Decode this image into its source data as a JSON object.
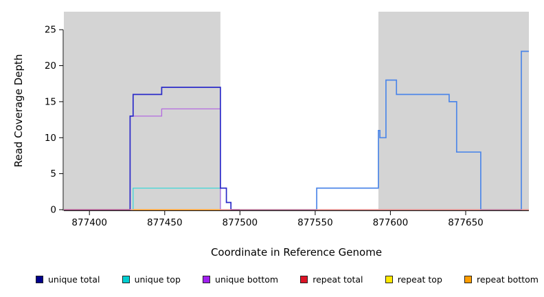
{
  "chart_data": {
    "type": "line",
    "subtype": "step",
    "title": "",
    "xlabel": "Coordinate in Reference Genome",
    "ylabel": "Read Coverage Depth",
    "x_range": [
      877383,
      877692
    ],
    "y_range": [
      0,
      27.5
    ],
    "x_ticks": [
      877400,
      877450,
      877500,
      877550,
      877600,
      877650
    ],
    "y_ticks": [
      0,
      5,
      10,
      15,
      20,
      25
    ],
    "grid": false,
    "legend_position": "bottom",
    "shaded_regions": [
      {
        "name": "repeat-region-left",
        "x0": 877383,
        "x1": 877487,
        "color": "#d4d4d4"
      },
      {
        "name": "repeat-region-right",
        "x0": 877592,
        "x1": 877692,
        "color": "#d4d4d4"
      }
    ],
    "series": [
      {
        "name": "unique total",
        "legend_color": "#00008b",
        "width": 1.7,
        "segments": [
          {
            "color": "#2a2ac8",
            "points": [
              [
                877383,
                0
              ],
              [
                877427,
                0
              ],
              [
                877427,
                13
              ],
              [
                877429,
                13
              ],
              [
                877429,
                16
              ],
              [
                877448,
                16
              ],
              [
                877448,
                17
              ],
              [
                877487,
                17
              ],
              [
                877487,
                3
              ],
              [
                877491,
                3
              ],
              [
                877491,
                1
              ],
              [
                877494,
                1
              ],
              [
                877494,
                0
              ],
              [
                877500,
                0
              ]
            ]
          },
          {
            "color": "#4d86e8",
            "points": [
              [
                877500,
                0
              ],
              [
                877551,
                0
              ],
              [
                877551,
                3
              ],
              [
                877592,
                3
              ],
              [
                877592,
                11
              ],
              [
                877593,
                11
              ],
              [
                877593,
                10
              ],
              [
                877597,
                10
              ],
              [
                877597,
                18
              ],
              [
                877604,
                18
              ],
              [
                877604,
                16
              ],
              [
                877639,
                16
              ],
              [
                877639,
                15
              ],
              [
                877644,
                15
              ],
              [
                877644,
                8
              ],
              [
                877660,
                8
              ],
              [
                877660,
                0
              ],
              [
                877687,
                0
              ],
              [
                877687,
                22
              ],
              [
                877692,
                22
              ]
            ]
          }
        ]
      },
      {
        "name": "unique top",
        "legend_color": "#00ced1",
        "width": 1.3,
        "segments": [
          {
            "color": "#3fd8d8",
            "points": [
              [
                877383,
                0
              ],
              [
                877429,
                0
              ],
              [
                877429,
                3
              ],
              [
                877487,
                3
              ],
              [
                877487,
                0
              ],
              [
                877692,
                0
              ]
            ]
          }
        ]
      },
      {
        "name": "unique bottom",
        "legend_color": "#a020f0",
        "width": 1.3,
        "segments": [
          {
            "color": "#b46ae0",
            "points": [
              [
                877383,
                0
              ],
              [
                877427,
                0
              ],
              [
                877427,
                13
              ],
              [
                877448,
                13
              ],
              [
                877448,
                14
              ],
              [
                877487,
                14
              ],
              [
                877487,
                0
              ],
              [
                877692,
                0
              ]
            ]
          }
        ]
      },
      {
        "name": "repeat total",
        "legend_color": "#dc1426",
        "width": 1.3,
        "segments": [
          {
            "color": "#f28080",
            "points": [
              [
                877383,
                0
              ],
              [
                877692,
                0
              ]
            ]
          }
        ]
      },
      {
        "name": "repeat top",
        "legend_color": "#ffe800",
        "width": 1.3,
        "segments": [
          {
            "color": "#ffe800",
            "points": [
              [
                877383,
                0
              ],
              [
                877692,
                0
              ]
            ]
          }
        ]
      },
      {
        "name": "repeat bottom",
        "legend_color": "#ff9d00",
        "width": 1.5,
        "segments": [
          {
            "color": "#ffa033",
            "points": [
              [
                877429,
                0
              ],
              [
                877487,
                0
              ]
            ]
          }
        ]
      }
    ],
    "legend": [
      {
        "label": "unique total",
        "color": "#00008b"
      },
      {
        "label": "unique top",
        "color": "#00ced1"
      },
      {
        "label": "unique bottom",
        "color": "#a020f0"
      },
      {
        "label": "repeat total",
        "color": "#dc1426"
      },
      {
        "label": "repeat top",
        "color": "#ffe800"
      },
      {
        "label": "repeat bottom",
        "color": "#ff9d00"
      }
    ]
  }
}
